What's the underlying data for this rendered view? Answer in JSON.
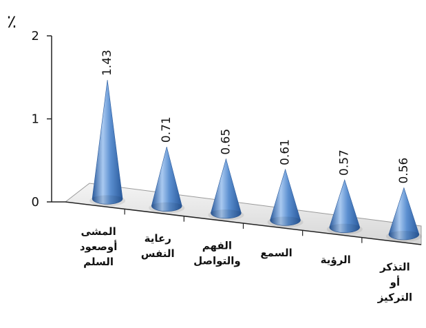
{
  "chart_data": {
    "type": "bar",
    "style": "3d-cone",
    "unit_label": "٪",
    "categories": [
      [
        "المشى",
        "أوصعود",
        "السلم"
      ],
      [
        "رعاية",
        "النفس"
      ],
      [
        "الفهم",
        "والتواصل"
      ],
      [
        "السمع"
      ],
      [
        "الرؤية"
      ],
      [
        "التذكر",
        "أو",
        "التركيز"
      ]
    ],
    "values": [
      1.43,
      0.71,
      0.65,
      0.61,
      0.57,
      0.56
    ],
    "data_labels": [
      "1.43",
      "0.71",
      "0.65",
      "0.61",
      "0.57",
      "0.56"
    ],
    "ylim": [
      0,
      2
    ],
    "yticks": [
      0,
      1,
      2
    ],
    "colors": {
      "cone_light": "#a9c9f0",
      "cone_mid": "#5b8fd0",
      "cone_dark": "#2a5a9c",
      "floor": "#e9e9e9",
      "axis": "#222222"
    }
  }
}
